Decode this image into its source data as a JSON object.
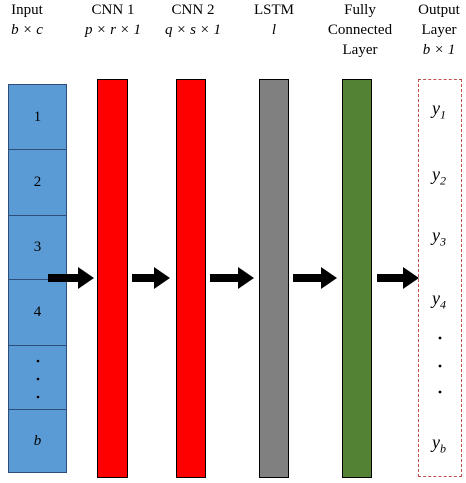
{
  "headers": {
    "input": {
      "line1": "Input",
      "line2": "b × c"
    },
    "cnn1": {
      "line1": "CNN 1",
      "line2": "p × r × 1"
    },
    "cnn2": {
      "line1": "CNN 2",
      "line2": "q × s × 1"
    },
    "lstm": {
      "line1": "LSTM",
      "line2": "l"
    },
    "fc": {
      "line1": "Fully",
      "line2": "Connected",
      "line3": "Layer"
    },
    "output": {
      "line1": "Output",
      "line2": "Layer",
      "line3": "b × 1"
    }
  },
  "input_cells": [
    "1",
    "2",
    "3",
    "4",
    "b"
  ],
  "output_labels": [
    {
      "base": "y",
      "sub": "1"
    },
    {
      "base": "y",
      "sub": "2"
    },
    {
      "base": "y",
      "sub": "3"
    },
    {
      "base": "y",
      "sub": "4"
    },
    {
      "base": "y",
      "sub": "b"
    }
  ],
  "colors": {
    "input_fill": "#5b9bd5",
    "cnn_fill": "#ff0000",
    "lstm_fill": "#808080",
    "fc_fill": "#548235",
    "output_border": "#c0504d",
    "arrow": "#000000"
  }
}
